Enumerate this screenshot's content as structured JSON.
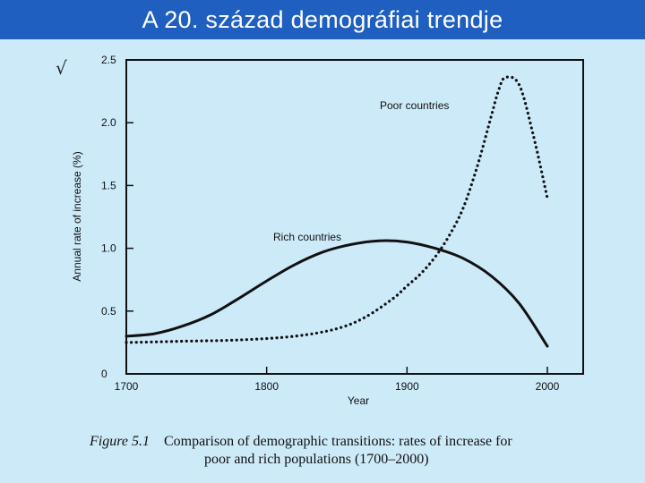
{
  "header": {
    "title": "A 20. század demográfiai trendje"
  },
  "decor": {
    "check_glyph": "√"
  },
  "chart_data": {
    "type": "line",
    "title": "",
    "xlabel": "Year",
    "ylabel": "Annual rate of increase (%)",
    "xlim": [
      1700,
      2020
    ],
    "ylim": [
      0,
      2.5
    ],
    "xticks": [
      1700,
      1800,
      1900,
      2000
    ],
    "yticks": [
      0,
      0.5,
      1.0,
      1.5,
      2.0,
      2.5
    ],
    "ytick_labels": [
      "0",
      "0.5",
      "1.0",
      "1.5",
      "2.0",
      "2.5"
    ],
    "grid": false,
    "series": [
      {
        "name": "Rich countries",
        "style": "solid",
        "color": "#111111",
        "x": [
          1700,
          1720,
          1740,
          1760,
          1780,
          1800,
          1820,
          1840,
          1860,
          1880,
          1900,
          1920,
          1940,
          1960,
          1980,
          2000
        ],
        "y": [
          0.3,
          0.32,
          0.38,
          0.47,
          0.6,
          0.74,
          0.87,
          0.97,
          1.03,
          1.06,
          1.05,
          1.0,
          0.92,
          0.78,
          0.56,
          0.22
        ]
      },
      {
        "name": "Poor countries",
        "style": "dotted",
        "color": "#111111",
        "x": [
          1700,
          1740,
          1780,
          1820,
          1850,
          1870,
          1890,
          1900,
          1910,
          1920,
          1930,
          1940,
          1950,
          1960,
          1965,
          1970,
          1980,
          1990,
          2000
        ],
        "y": [
          0.25,
          0.26,
          0.27,
          0.3,
          0.36,
          0.45,
          0.6,
          0.7,
          0.8,
          0.93,
          1.1,
          1.32,
          1.65,
          2.05,
          2.25,
          2.36,
          2.3,
          1.9,
          1.4
        ]
      }
    ]
  },
  "caption": {
    "figure_label": "Figure 5.1",
    "text_line1": "Comparison of demographic transitions: rates of increase for",
    "text_line2": "poor and rich populations (1700–2000)"
  }
}
